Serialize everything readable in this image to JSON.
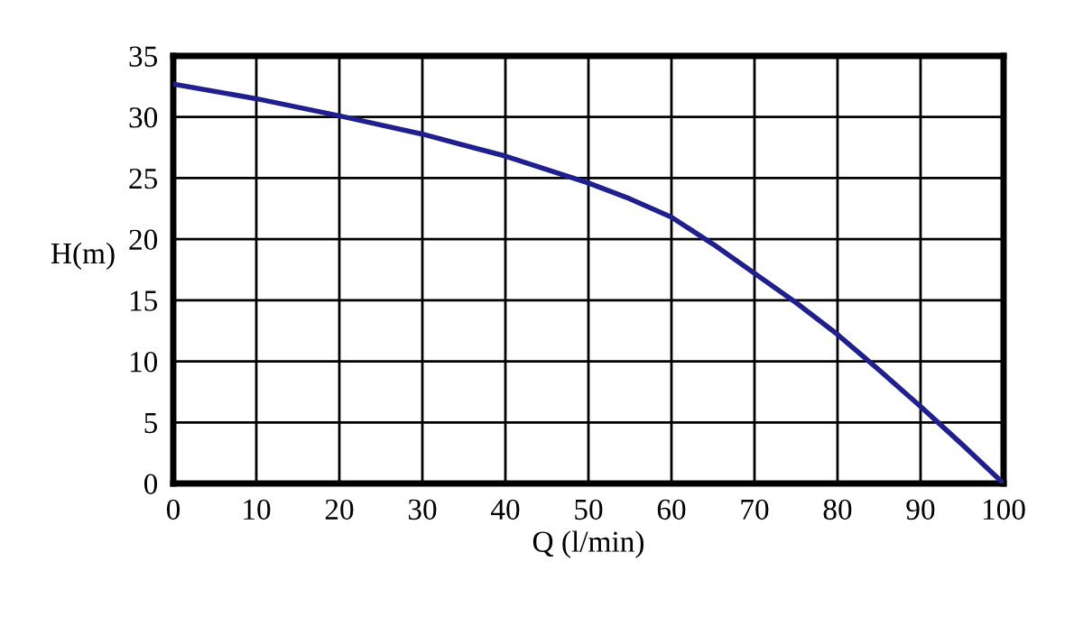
{
  "chart_data": {
    "type": "line",
    "xlabel": "Q (l/min)",
    "ylabel": "H(m)",
    "series": [
      {
        "color": "#1f1f8f",
        "x": [
          0,
          10,
          20,
          30,
          40,
          50,
          55,
          60,
          65,
          70,
          75,
          80,
          85,
          90,
          95,
          100
        ],
        "values": [
          32.7,
          31.5,
          30.1,
          28.6,
          26.8,
          24.6,
          23.3,
          21.8,
          19.6,
          17.2,
          14.8,
          12.2,
          9.3,
          6.3,
          3.2,
          0
        ]
      }
    ],
    "xlim": [
      0,
      100
    ],
    "xticks": [
      0,
      10,
      20,
      30,
      40,
      50,
      60,
      70,
      80,
      90,
      100
    ],
    "ylim": [
      0,
      35
    ],
    "yticks": [
      0,
      5,
      10,
      15,
      20,
      25,
      30,
      35
    ],
    "grid": true,
    "marker": "none",
    "line_style": "solid"
  }
}
